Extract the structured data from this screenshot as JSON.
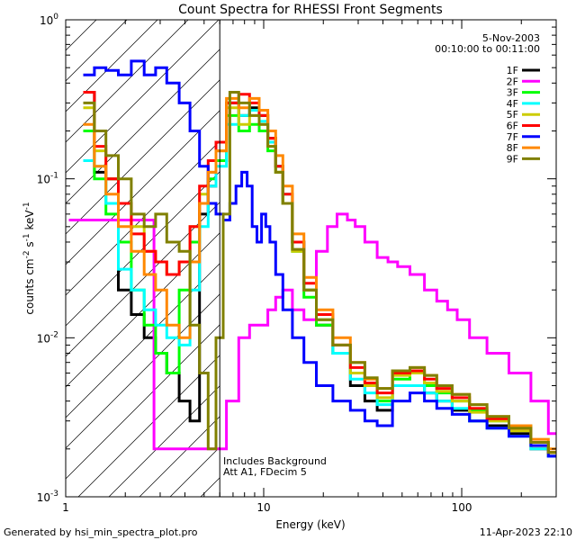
{
  "chart_data": {
    "type": "line",
    "title": "Count Spectra for RHESSI Front Segments",
    "xlabel": "Energy (keV)",
    "ylabel_parts": {
      "a": "counts cm",
      "b": "-2",
      "c": " s",
      "d": "-1",
      "e": " keV",
      "f": "-1"
    },
    "x_scale": "log",
    "y_scale": "log",
    "xlim": [
      1,
      300
    ],
    "ylim": [
      0.001,
      1
    ],
    "x_ticks": [
      {
        "v": 1,
        "label": "1"
      },
      {
        "v": 10,
        "label": "10"
      },
      {
        "v": 100,
        "label": "100"
      }
    ],
    "y_ticks": [
      {
        "v": 1,
        "base": "10",
        "exp": "0"
      },
      {
        "v": 0.1,
        "base": "10",
        "exp": "-1"
      },
      {
        "v": 0.01,
        "base": "10",
        "exp": "-2"
      },
      {
        "v": 0.001,
        "base": "10",
        "exp": "-3"
      }
    ],
    "date": "5-Nov-2003",
    "time_range": "00:10:00 to 00:11:00",
    "annotation_line1": "Includes Background",
    "annotation_line2": "Att A1, FDecim 5",
    "attenuator_cutoff_kev": 6,
    "hatched_region": [
      1,
      6
    ],
    "legend_position": "top-right",
    "series": [
      {
        "name": "1F",
        "color": "#000000",
        "x": [
          1.3,
          1.5,
          1.7,
          2,
          2.3,
          2.7,
          3,
          3.5,
          4,
          4.5,
          5,
          5.5,
          6,
          7,
          8,
          9,
          10,
          11,
          12,
          13,
          15,
          17,
          20,
          25,
          30,
          35,
          40,
          50,
          60,
          70,
          80,
          100,
          120,
          150,
          200,
          250,
          300
        ],
        "y": [
          0.35,
          0.11,
          0.1,
          0.02,
          0.014,
          0.01,
          0.008,
          0.006,
          0.004,
          0.003,
          0.06,
          0.09,
          0.13,
          0.3,
          0.25,
          0.28,
          0.25,
          0.18,
          0.12,
          0.07,
          0.04,
          0.02,
          0.012,
          0.008,
          0.005,
          0.004,
          0.0035,
          0.005,
          0.005,
          0.0045,
          0.004,
          0.0035,
          0.003,
          0.0028,
          0.0025,
          0.002,
          0.0018
        ]
      },
      {
        "name": "2F",
        "color": "#ff00ff",
        "x": [
          1.1,
          1.3,
          6,
          7,
          8,
          9,
          10,
          11,
          12,
          13,
          15,
          17,
          20,
          22,
          25,
          28,
          30,
          35,
          40,
          45,
          50,
          60,
          70,
          80,
          90,
          100,
          120,
          150,
          200,
          250,
          300
        ],
        "y": [
          0.055,
          0.055,
          0.002,
          0.004,
          0.01,
          0.012,
          0.012,
          0.015,
          0.018,
          0.02,
          0.015,
          0.013,
          0.035,
          0.05,
          0.06,
          0.055,
          0.05,
          0.04,
          0.032,
          0.03,
          0.028,
          0.025,
          0.02,
          0.017,
          0.015,
          0.013,
          0.01,
          0.008,
          0.006,
          0.004,
          0.0025
        ]
      },
      {
        "name": "3F",
        "color": "#00ff00",
        "x": [
          1.3,
          1.5,
          1.7,
          2,
          2.3,
          2.7,
          3,
          3.5,
          4,
          4.5,
          5,
          5.5,
          6,
          7,
          8,
          9,
          10,
          11,
          12,
          13,
          15,
          17,
          20,
          25,
          30,
          35,
          40,
          50,
          60,
          70,
          80,
          100,
          120,
          150,
          200,
          250,
          300
        ],
        "y": [
          0.2,
          0.1,
          0.06,
          0.04,
          0.02,
          0.012,
          0.008,
          0.006,
          0.02,
          0.04,
          0.07,
          0.1,
          0.13,
          0.25,
          0.2,
          0.22,
          0.2,
          0.15,
          0.11,
          0.07,
          0.035,
          0.018,
          0.012,
          0.008,
          0.006,
          0.005,
          0.004,
          0.0055,
          0.006,
          0.005,
          0.0045,
          0.004,
          0.0035,
          0.003,
          0.0028,
          0.0022,
          0.0019
        ]
      },
      {
        "name": "4F",
        "color": "#00ffff",
        "x": [
          1.3,
          1.5,
          1.7,
          2,
          2.3,
          2.7,
          3,
          3.5,
          4,
          4.5,
          5,
          5.5,
          6,
          7,
          8,
          9,
          10,
          11,
          12,
          13,
          15,
          17,
          20,
          25,
          30,
          35,
          40,
          50,
          60,
          70,
          80,
          100,
          120,
          150,
          200,
          250,
          300
        ],
        "y": [
          0.13,
          0.12,
          0.07,
          0.027,
          0.02,
          0.015,
          0.012,
          0.01,
          0.009,
          0.02,
          0.05,
          0.09,
          0.12,
          0.22,
          0.25,
          0.27,
          0.23,
          0.17,
          0.12,
          0.08,
          0.04,
          0.02,
          0.013,
          0.008,
          0.0055,
          0.0045,
          0.0038,
          0.005,
          0.005,
          0.0045,
          0.004,
          0.0036,
          0.003,
          0.0027,
          0.0024,
          0.002,
          0.0018
        ]
      },
      {
        "name": "5F",
        "color": "#cccc00",
        "x": [
          1.3,
          1.5,
          1.7,
          2,
          2.3,
          2.7,
          3,
          3.5,
          4,
          4.5,
          5,
          5.5,
          6,
          7,
          8,
          9,
          10,
          11,
          12,
          13,
          15,
          17,
          20,
          25,
          30,
          35,
          40,
          50,
          60,
          70,
          80,
          100,
          120,
          150,
          200,
          250,
          300
        ],
        "y": [
          0.28,
          0.15,
          0.1,
          0.07,
          0.05,
          0.035,
          0.03,
          0.025,
          0.03,
          0.05,
          0.08,
          0.11,
          0.15,
          0.28,
          0.22,
          0.25,
          0.22,
          0.16,
          0.11,
          0.07,
          0.035,
          0.02,
          0.013,
          0.009,
          0.006,
          0.005,
          0.0042,
          0.0058,
          0.006,
          0.0052,
          0.0046,
          0.004,
          0.0034,
          0.003,
          0.0026,
          0.0021,
          0.0019
        ]
      },
      {
        "name": "6F",
        "color": "#ff0000",
        "x": [
          1.3,
          1.5,
          1.7,
          2,
          2.3,
          2.7,
          3,
          3.5,
          4,
          4.5,
          5,
          5.5,
          6,
          7,
          8,
          9,
          10,
          11,
          12,
          13,
          15,
          17,
          20,
          25,
          30,
          35,
          40,
          50,
          60,
          70,
          80,
          100,
          120,
          150,
          200,
          250,
          300
        ],
        "y": [
          0.35,
          0.16,
          0.1,
          0.07,
          0.045,
          0.035,
          0.03,
          0.025,
          0.03,
          0.05,
          0.09,
          0.13,
          0.17,
          0.3,
          0.34,
          0.3,
          0.25,
          0.18,
          0.12,
          0.08,
          0.04,
          0.022,
          0.014,
          0.009,
          0.0065,
          0.0052,
          0.0045,
          0.006,
          0.0062,
          0.0055,
          0.0048,
          0.0042,
          0.0036,
          0.0031,
          0.0027,
          0.0022,
          0.0019
        ]
      },
      {
        "name": "7F",
        "color": "#0000ff",
        "x": [
          1.3,
          1.5,
          1.7,
          2,
          2.3,
          2.7,
          3,
          3.5,
          4,
          4.5,
          5,
          5.5,
          6,
          6.5,
          7,
          7.5,
          8,
          8.5,
          9,
          9.5,
          10,
          10.5,
          11,
          12,
          13,
          15,
          17,
          20,
          25,
          30,
          35,
          40,
          50,
          60,
          70,
          80,
          100,
          120,
          150,
          200,
          250,
          300
        ],
        "y": [
          0.45,
          0.5,
          0.48,
          0.45,
          0.55,
          0.45,
          0.5,
          0.4,
          0.3,
          0.2,
          0.12,
          0.07,
          0.06,
          0.055,
          0.07,
          0.09,
          0.11,
          0.09,
          0.05,
          0.04,
          0.06,
          0.05,
          0.04,
          0.025,
          0.015,
          0.01,
          0.007,
          0.005,
          0.004,
          0.0035,
          0.003,
          0.0028,
          0.004,
          0.0045,
          0.004,
          0.0036,
          0.0033,
          0.003,
          0.0027,
          0.0024,
          0.0021,
          0.0018
        ]
      },
      {
        "name": "8F",
        "color": "#ff8800",
        "x": [
          1.3,
          1.5,
          1.7,
          2,
          2.3,
          2.7,
          3,
          3.5,
          4,
          4.5,
          5,
          5.5,
          6,
          7,
          8,
          9,
          10,
          11,
          12,
          13,
          15,
          17,
          20,
          25,
          30,
          35,
          40,
          50,
          60,
          70,
          80,
          100,
          120,
          150,
          200,
          250,
          300
        ],
        "y": [
          0.22,
          0.12,
          0.08,
          0.05,
          0.035,
          0.025,
          0.02,
          0.012,
          0.01,
          0.03,
          0.07,
          0.11,
          0.15,
          0.32,
          0.28,
          0.32,
          0.27,
          0.2,
          0.14,
          0.09,
          0.045,
          0.024,
          0.015,
          0.01,
          0.007,
          0.0055,
          0.0048,
          0.0062,
          0.0065,
          0.0058,
          0.005,
          0.0044,
          0.0038,
          0.0032,
          0.0028,
          0.0023,
          0.002
        ]
      },
      {
        "name": "9F",
        "color": "#808000",
        "x": [
          1.3,
          1.5,
          1.7,
          2,
          2.3,
          2.7,
          3,
          3.5,
          4,
          4.5,
          5,
          5.5,
          6,
          6.5,
          7,
          8,
          9,
          10,
          11,
          12,
          13,
          15,
          17,
          20,
          25,
          30,
          35,
          40,
          50,
          60,
          70,
          80,
          100,
          120,
          150,
          200,
          250,
          300
        ],
        "y": [
          0.3,
          0.2,
          0.14,
          0.1,
          0.06,
          0.05,
          0.06,
          0.04,
          0.035,
          0.012,
          0.006,
          0.002,
          0.01,
          0.06,
          0.35,
          0.3,
          0.25,
          0.22,
          0.16,
          0.11,
          0.07,
          0.036,
          0.02,
          0.013,
          0.009,
          0.007,
          0.0056,
          0.0048,
          0.0062,
          0.0065,
          0.0058,
          0.005,
          0.0044,
          0.0038,
          0.0032,
          0.0027,
          0.0022,
          0.0019
        ]
      }
    ]
  },
  "footer": {
    "left": "Generated by hsi_min_spectra_plot.pro",
    "right": "11-Apr-2023 22:10"
  }
}
